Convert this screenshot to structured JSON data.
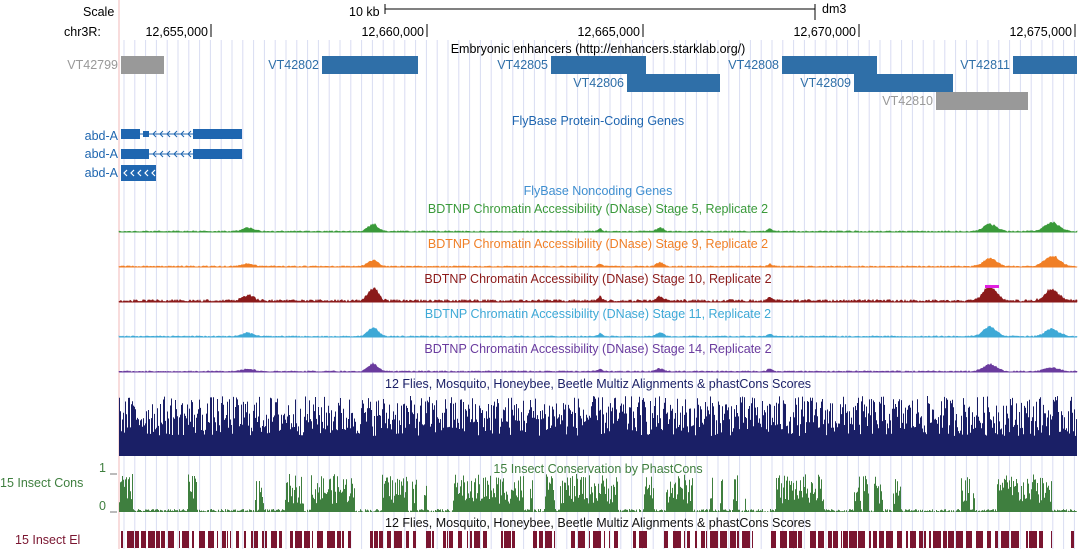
{
  "header": {
    "scale_label": "Scale",
    "scale_bar_text": "10 kb",
    "assembly": "dm3",
    "chrom_label": "chr3R:",
    "ruler_ticks": [
      "12,655,000",
      "12,660,000",
      "12,665,000",
      "12,670,000",
      "12,675,000"
    ]
  },
  "tracks": {
    "enhancers": {
      "title": "Embryonic enhancers (http://enhancers.starklab.org/)",
      "items": [
        {
          "name": "VT42799",
          "color": "#999999"
        },
        {
          "name": "VT42802",
          "color": "#2f6fa8"
        },
        {
          "name": "VT42805",
          "color": "#2f6fa8"
        },
        {
          "name": "VT42806",
          "color": "#2f6fa8"
        },
        {
          "name": "VT42808",
          "color": "#2f6fa8"
        },
        {
          "name": "VT42809",
          "color": "#2f6fa8"
        },
        {
          "name": "VT42810",
          "color": "#999999"
        },
        {
          "name": "VT42811",
          "color": "#2f6fa8"
        }
      ]
    },
    "protein_coding": {
      "title": "FlyBase Protein-Coding Genes",
      "color": "#1f66b0",
      "genes": [
        "abd-A",
        "abd-A",
        "abd-A"
      ]
    },
    "noncoding": {
      "title": "FlyBase Noncoding Genes",
      "color": "#3f8fd0"
    },
    "dnase": [
      {
        "title": "BDTNP Chromatin Accessibility (DNase) Stage 5, Replicate 2",
        "color": "#3a9a3a"
      },
      {
        "title": "BDTNP Chromatin Accessibility (DNase) Stage 9, Replicate 2",
        "color": "#f07f26"
      },
      {
        "title": "BDTNP Chromatin Accessibility (DNase) Stage 10, Replicate 2",
        "color": "#8b1a1a"
      },
      {
        "title": "BDTNP Chromatin Accessibility (DNase) Stage 11, Replicate 2",
        "color": "#3ea9d6"
      },
      {
        "title": "BDTNP Chromatin Accessibility (DNase) Stage 14, Replicate 2",
        "color": "#6a3b9e"
      }
    ],
    "multiz": {
      "title": "12 Flies, Mosquito, Honeybee, Beetle Multiz Alignments & phastCons Scores",
      "color": "#1a1f66"
    },
    "phastcons": {
      "title": "15 Insect Conservation by PhastCons",
      "side_label": "15 Insect Cons",
      "scale_max": "1",
      "scale_min": "0",
      "color": "#3f7f3f"
    },
    "elements": {
      "title": "12 Flies, Mosquito, Honeybee, Beetle Multiz Alignments & phastCons Scores",
      "side_label": "15 Insect El",
      "color": "#7a1530"
    }
  }
}
